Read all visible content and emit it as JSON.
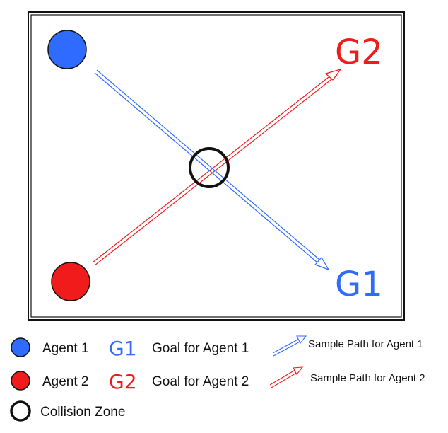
{
  "colors": {
    "agent1": "#2f6bff",
    "agent2": "#f01c1c",
    "frame": "#111111",
    "background": "#ffffff"
  },
  "diagram": {
    "goal1_label": "G1",
    "goal2_label": "G2"
  },
  "legend": {
    "agent1_label": "Agent 1",
    "agent2_label": "Agent 2",
    "g1_label": "G1",
    "g2_label": "G2",
    "goal1_desc": "Goal for Agent 1",
    "goal2_desc": "Goal for Agent 2",
    "path1_desc": "Sample Path for Agent 1",
    "path2_desc": "Sample Path for Agent 2",
    "collision_label": "Collision Zone"
  }
}
